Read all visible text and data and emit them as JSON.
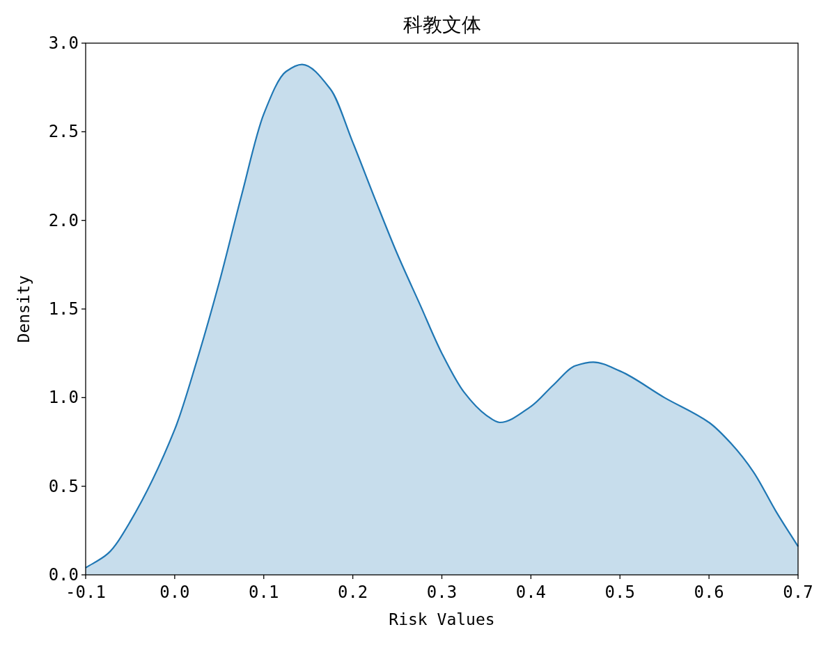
{
  "chart_data": {
    "type": "area",
    "title": "科教文体",
    "xlabel": "Risk Values",
    "ylabel": "Density",
    "x": [
      -0.1,
      -0.075,
      -0.05,
      0.0,
      0.025,
      0.05,
      0.075,
      0.1,
      0.125,
      0.143,
      0.175,
      0.2,
      0.225,
      0.25,
      0.275,
      0.3,
      0.325,
      0.35,
      0.365,
      0.4,
      0.425,
      0.45,
      0.47,
      0.5,
      0.55,
      0.6,
      0.625,
      0.65,
      0.675,
      0.7
    ],
    "series": [
      {
        "color": "#1f77b4",
        "values": [
          0.04,
          0.12,
          0.3,
          0.82,
          1.21,
          1.65,
          2.14,
          2.6,
          2.84,
          2.88,
          2.74,
          2.44,
          2.12,
          1.81,
          1.53,
          1.25,
          1.03,
          0.9,
          0.86,
          0.95,
          1.07,
          1.18,
          1.2,
          1.15,
          1.0,
          0.86,
          0.74,
          0.58,
          0.36,
          0.16
        ]
      }
    ],
    "xlim": [
      -0.1,
      0.7
    ],
    "ylim": [
      0,
      3.0
    ],
    "xticks": [
      -0.1,
      {
        "value": 0,
        "label": "0.0"
      },
      0.1,
      0.2,
      0.3,
      0.4,
      0.5,
      0.6,
      0.7
    ],
    "yticks": [
      {
        "value": 0,
        "label": "0.0"
      },
      0.5,
      {
        "value": 1,
        "label": "1.0"
      },
      1.5,
      {
        "value": 2,
        "label": "2.0"
      },
      2.5,
      {
        "value": 3,
        "label": "3.0"
      }
    ],
    "grid": false
  }
}
